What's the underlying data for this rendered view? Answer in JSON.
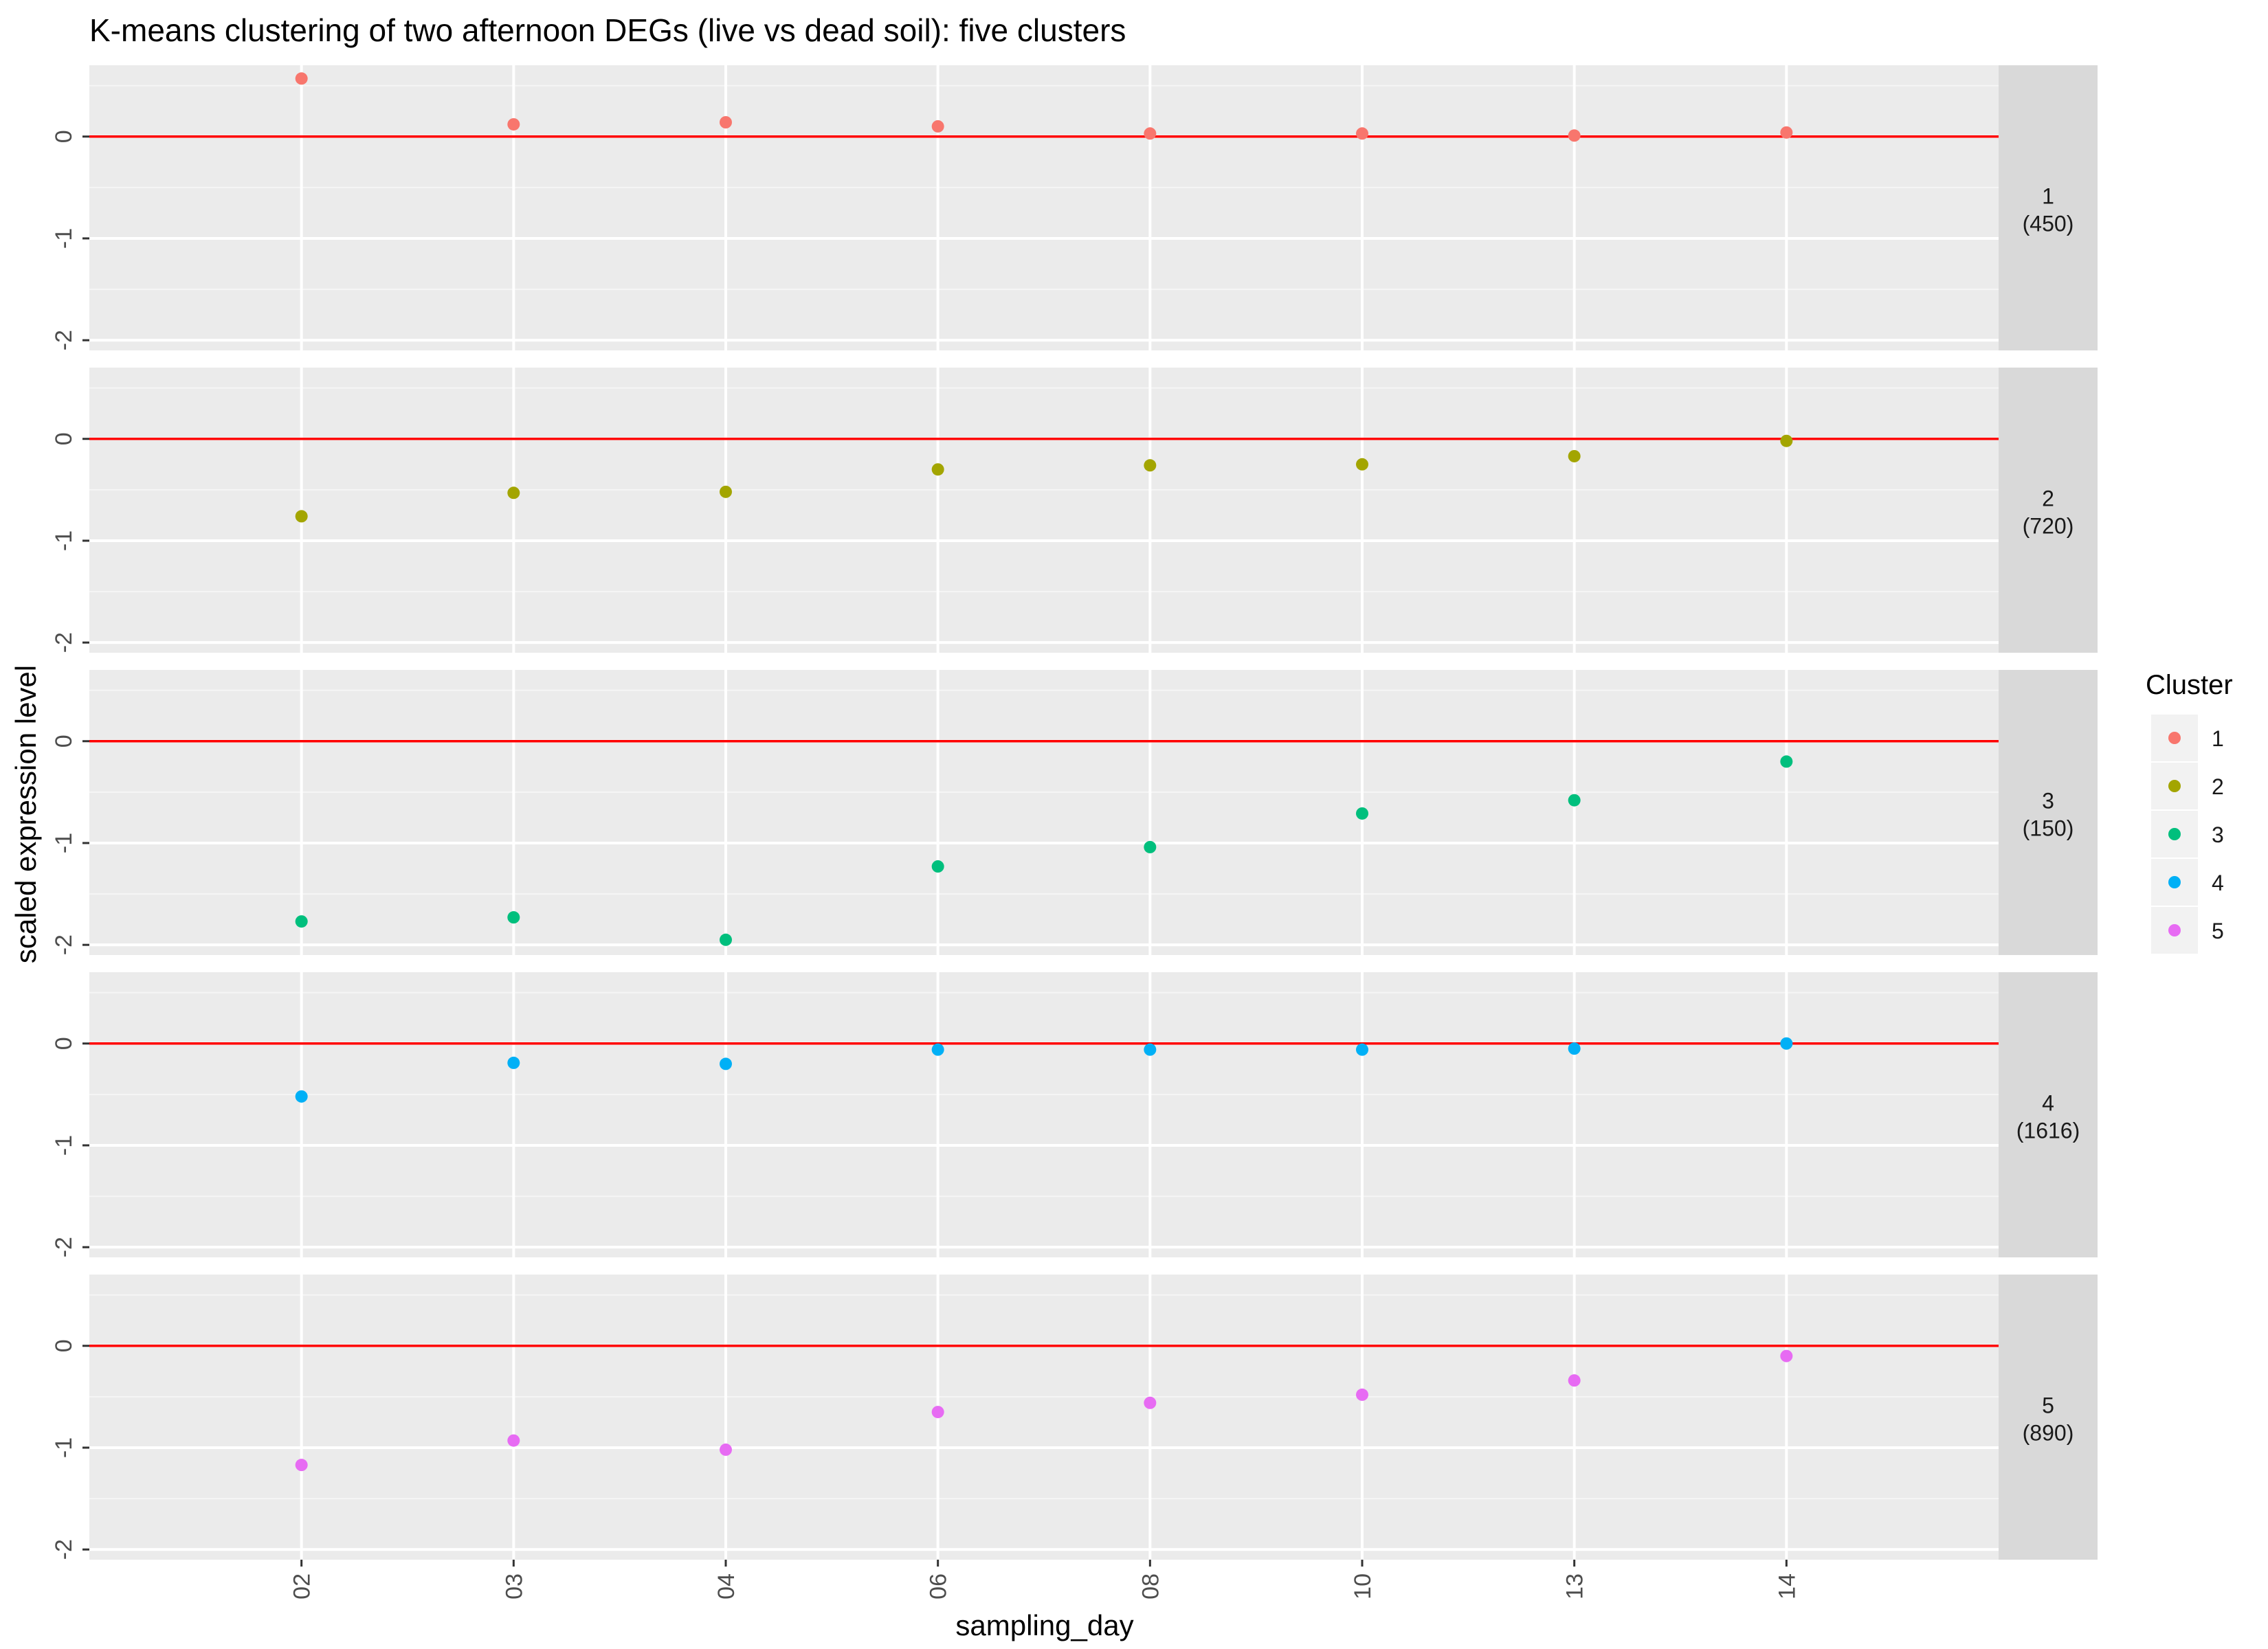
{
  "chart_data": {
    "type": "scatter",
    "title": "K-means clustering of two afternoon DEGs (live vs dead soil): five clusters",
    "xlabel": "sampling_day",
    "ylabel": "scaled expression level",
    "categories": [
      "02",
      "03",
      "04",
      "06",
      "08",
      "10",
      "13",
      "14"
    ],
    "ylim": [
      -2.1,
      0.7
    ],
    "yticks": [
      0,
      -1,
      -2
    ],
    "reference_line": {
      "y": 0,
      "color": "#ff0000"
    },
    "grid": true,
    "legend": {
      "title": "Cluster",
      "position": "right",
      "entries": [
        "1",
        "2",
        "3",
        "4",
        "5"
      ]
    },
    "series": [
      {
        "name": "1",
        "strip_label": "1",
        "strip_count": "(450)",
        "color": "#F8766D",
        "values": [
          0.57,
          0.12,
          0.14,
          0.1,
          0.03,
          0.03,
          0.01,
          0.04
        ]
      },
      {
        "name": "2",
        "strip_label": "2",
        "strip_count": "(720)",
        "color": "#A3A500",
        "values": [
          -0.76,
          -0.53,
          -0.52,
          -0.3,
          -0.26,
          -0.25,
          -0.17,
          -0.02
        ]
      },
      {
        "name": "3",
        "strip_label": "3",
        "strip_count": "(150)",
        "color": "#00BF7D",
        "values": [
          -1.77,
          -1.73,
          -1.95,
          -1.23,
          -1.04,
          -0.71,
          -0.58,
          -0.2
        ]
      },
      {
        "name": "4",
        "strip_label": "4",
        "strip_count": "(1616)",
        "color": "#00B0F6",
        "values": [
          -0.52,
          -0.19,
          -0.2,
          -0.06,
          -0.06,
          -0.06,
          -0.05,
          0.0
        ]
      },
      {
        "name": "5",
        "strip_label": "5",
        "strip_count": "(890)",
        "color": "#E76BF3",
        "values": [
          -1.17,
          -0.93,
          -1.02,
          -0.65,
          -0.56,
          -0.48,
          -0.34,
          -0.1
        ]
      }
    ]
  }
}
